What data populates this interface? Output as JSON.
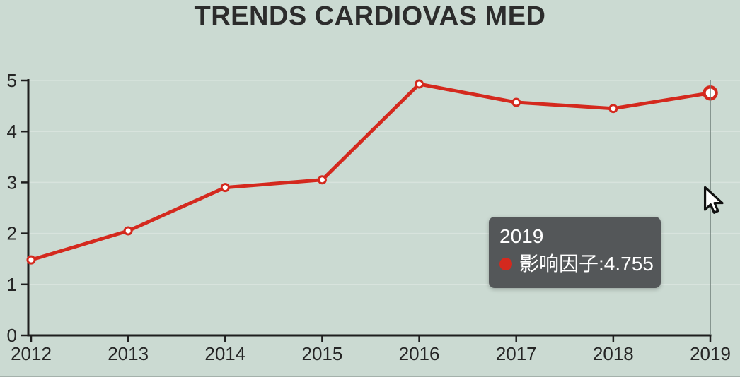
{
  "title": "TRENDS CARDIOVAS MED",
  "chart_data": {
    "type": "line",
    "title": "TRENDS CARDIOVAS MED",
    "x": [
      "2012",
      "2013",
      "2014",
      "2015",
      "2016",
      "2017",
      "2018",
      "2019"
    ],
    "series": [
      {
        "name": "影响因子",
        "values": [
          1.48,
          2.05,
          2.9,
          3.05,
          4.93,
          4.57,
          4.45,
          4.755
        ],
        "color": "#d4291e"
      }
    ],
    "xlabel": "",
    "ylabel": "",
    "ylim": [
      0,
      5
    ],
    "yticks": [
      0,
      1,
      2,
      3,
      4,
      5
    ],
    "grid": "horizontal",
    "legend_position": "none",
    "highlight_index": 7,
    "highlighted_value_label": "4.755"
  },
  "tooltip": {
    "title": "2019",
    "series_label": "影响因子",
    "separator": ": ",
    "value": "4.755",
    "marker_color": "#d4291e"
  },
  "colors": {
    "background": "#cbdad2",
    "line": "#d4291e",
    "point_fill": "#ffffff",
    "axis": "#1e1e1e",
    "grid": "#d8e3dd",
    "crosshair": "#6f7e79",
    "tooltip_bg": "#4f5355",
    "tooltip_text": "#ffffff",
    "title_text": "#2c2c2c"
  },
  "cursor": {
    "type": "arrow-pointer"
  }
}
